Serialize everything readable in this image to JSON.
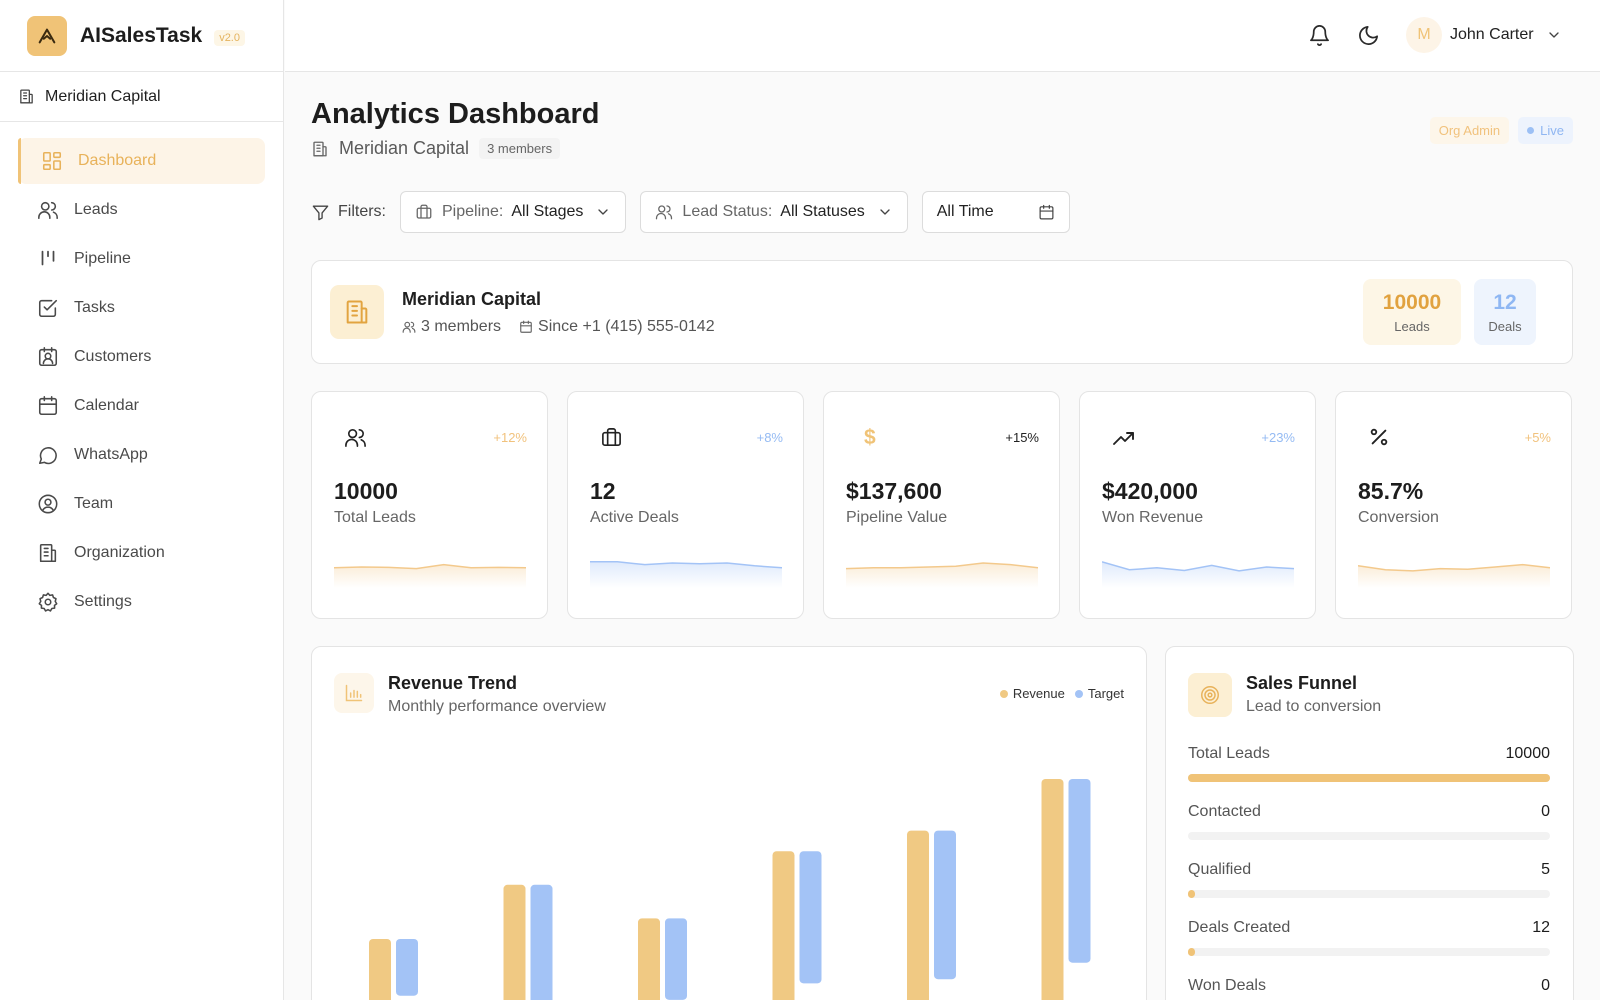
{
  "brand": {
    "name": "AISalesTask",
    "version": "v2.0",
    "accent": "#f0c377"
  },
  "sidebar": {
    "org": "Meridian Capital",
    "items": [
      {
        "label": "Dashboard",
        "icon": "dashboard-icon",
        "active": true
      },
      {
        "label": "Leads",
        "icon": "users-icon"
      },
      {
        "label": "Pipeline",
        "icon": "pipeline-icon"
      },
      {
        "label": "Tasks",
        "icon": "tasks-icon"
      },
      {
        "label": "Customers",
        "icon": "customers-icon"
      },
      {
        "label": "Calendar",
        "icon": "calendar-icon"
      },
      {
        "label": "WhatsApp",
        "icon": "chat-icon"
      },
      {
        "label": "Team",
        "icon": "team-icon"
      },
      {
        "label": "Organization",
        "icon": "building-icon"
      },
      {
        "label": "Settings",
        "icon": "gear-icon"
      }
    ]
  },
  "topbar": {
    "avatar_initial": "M",
    "user_name": "John Carter"
  },
  "header": {
    "title": "Analytics Dashboard",
    "org": "Meridian Capital",
    "members": "3 members",
    "badges": {
      "role": "Org Admin",
      "live": "Live"
    }
  },
  "filters": {
    "label": "Filters:",
    "pipeline": {
      "label": "Pipeline:",
      "value": "All Stages"
    },
    "status": {
      "label": "Lead Status:",
      "value": "All Statuses"
    },
    "date": {
      "value": "All Time"
    }
  },
  "org_card": {
    "name": "Meridian Capital",
    "members": "3 members",
    "since": "Since +1 (415) 555-0142",
    "leads": {
      "value": "10000",
      "label": "Leads"
    },
    "deals": {
      "value": "12",
      "label": "Deals"
    }
  },
  "kpis": [
    {
      "icon": "users-icon",
      "change": "+12%",
      "change_color": "#f1c27d",
      "value": "10000",
      "label": "Total Leads",
      "color": "#f3c98c",
      "spark": [
        0.4,
        0.42,
        0.41,
        0.38,
        0.48,
        0.4,
        0.41,
        0.4
      ]
    },
    {
      "icon": "briefcase-icon",
      "change": "+8%",
      "change_color": "#95bbf3",
      "value": "12",
      "active": true,
      "label": "Active Deals",
      "color": "#a3c3f6",
      "spark": [
        0.55,
        0.55,
        0.48,
        0.52,
        0.5,
        0.52,
        0.45,
        0.4
      ]
    },
    {
      "icon": "dollar-icon",
      "change": "+15%",
      "change_color": "#222222",
      "value": "$137,600",
      "label": "Pipeline Value",
      "color": "#f3c98c",
      "spark": [
        0.38,
        0.4,
        0.4,
        0.42,
        0.44,
        0.52,
        0.48,
        0.4
      ]
    },
    {
      "icon": "trending-up-icon",
      "change": "+23%",
      "change_color": "#95bbf3",
      "value": "$420,000",
      "label": "Won Revenue",
      "color": "#a3c3f6",
      "spark": [
        0.55,
        0.35,
        0.4,
        0.33,
        0.46,
        0.32,
        0.42,
        0.38
      ]
    },
    {
      "icon": "percent-icon",
      "change": "+5%",
      "change_color": "#f1c27d",
      "value": "85.7%",
      "label": "Conversion",
      "color": "#f3c98c",
      "spark": [
        0.45,
        0.35,
        0.32,
        0.38,
        0.36,
        0.42,
        0.48,
        0.4
      ]
    }
  ],
  "revenue": {
    "title": "Revenue Trend",
    "subtitle": "Monthly performance overview",
    "legend": [
      "Revenue",
      "Target"
    ]
  },
  "chart_data": {
    "type": "bar",
    "title": "Revenue Trend",
    "subtitle": "Monthly performance overview",
    "categories": [
      "",
      "",
      "",
      "",
      "",
      ""
    ],
    "series": [
      {
        "name": "Revenue",
        "color": "#f0c983",
        "values": [
          38,
          59,
          46,
          72,
          80,
          100
        ]
      },
      {
        "name": "Target",
        "color": "#a3c3f6",
        "values": [
          38,
          59,
          46,
          72,
          80,
          100
        ]
      }
    ],
    "note_visible": "bars extend past bottom of card",
    "grid": false,
    "legend_position": "top-right"
  },
  "funnel": {
    "title": "Sales Funnel",
    "subtitle": "Lead to conversion",
    "stages": [
      {
        "name": "Total Leads",
        "value": "10000",
        "fraction": 1.0
      },
      {
        "name": "Contacted",
        "value": "0",
        "fraction": 0.0
      },
      {
        "name": "Qualified",
        "value": "5",
        "fraction": 0.0005
      },
      {
        "name": "Deals Created",
        "value": "12",
        "fraction": 0.0012
      },
      {
        "name": "Won Deals",
        "value": "0",
        "fraction": 0.0
      }
    ]
  }
}
